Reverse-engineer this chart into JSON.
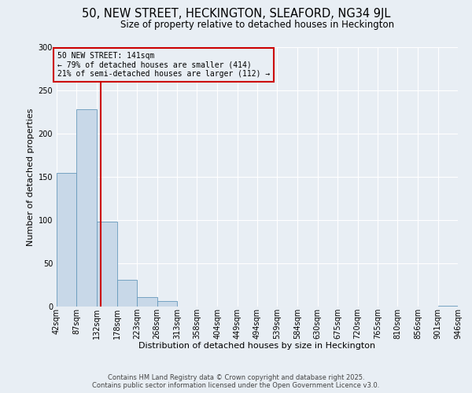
{
  "title": "50, NEW STREET, HECKINGTON, SLEAFORD, NG34 9JL",
  "subtitle": "Size of property relative to detached houses in Heckington",
  "xlabel": "Distribution of detached houses by size in Heckington",
  "ylabel": "Number of detached properties",
  "bar_values": [
    155,
    228,
    98,
    31,
    11,
    6,
    0,
    0,
    0,
    0,
    0,
    0,
    0,
    0,
    0,
    0,
    0,
    0,
    0,
    1
  ],
  "bin_labels": [
    "42sqm",
    "87sqm",
    "132sqm",
    "178sqm",
    "223sqm",
    "268sqm",
    "313sqm",
    "358sqm",
    "404sqm",
    "449sqm",
    "494sqm",
    "539sqm",
    "584sqm",
    "630sqm",
    "675sqm",
    "720sqm",
    "765sqm",
    "810sqm",
    "856sqm",
    "901sqm",
    "946sqm"
  ],
  "bin_edges": [
    42,
    87,
    132,
    178,
    223,
    268,
    313,
    358,
    404,
    449,
    494,
    539,
    584,
    630,
    675,
    720,
    765,
    810,
    856,
    901,
    946
  ],
  "bar_color": "#c8d8e8",
  "bar_edge_color": "#6699bb",
  "vline_x": 141,
  "vline_color": "#cc0000",
  "ylim": [
    0,
    300
  ],
  "yticks": [
    0,
    50,
    100,
    150,
    200,
    250,
    300
  ],
  "annotation_title": "50 NEW STREET: 141sqm",
  "annotation_line1": "← 79% of detached houses are smaller (414)",
  "annotation_line2": "21% of semi-detached houses are larger (112) →",
  "annotation_box_color": "#cc0000",
  "footer_line1": "Contains HM Land Registry data © Crown copyright and database right 2025.",
  "footer_line2": "Contains public sector information licensed under the Open Government Licence v3.0.",
  "background_color": "#e8eef4",
  "grid_color": "#ffffff",
  "title_fontsize": 10.5,
  "subtitle_fontsize": 8.5,
  "axis_label_fontsize": 8,
  "tick_fontsize": 7,
  "annotation_fontsize": 7,
  "footer_fontsize": 6
}
